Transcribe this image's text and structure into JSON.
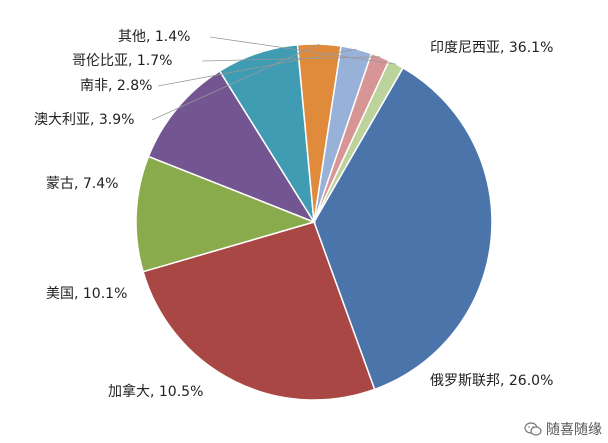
{
  "chart_data": {
    "type": "pie",
    "title": "",
    "slices": [
      {
        "label": "印度尼西亚, 36.1%",
        "value": 36.1,
        "color": "#4a74aa"
      },
      {
        "label": "俄罗斯联邦, 26.0%",
        "value": 26.0,
        "color": "#a94744"
      },
      {
        "label": "加拿大, 10.5%",
        "value": 10.5,
        "color": "#8aab4c"
      },
      {
        "label": "美国, 10.1%",
        "value": 10.1,
        "color": "#735592"
      },
      {
        "label": "蒙古, 7.4%",
        "value": 7.4,
        "color": "#3f9cb3"
      },
      {
        "label": "澳大利亚, 3.9%",
        "value": 3.9,
        "color": "#e08a3c"
      },
      {
        "label": "南非, 2.8%",
        "value": 2.8,
        "color": "#97b1d8"
      },
      {
        "label": "哥伦比亚, 1.7%",
        "value": 1.7,
        "color": "#d89595"
      },
      {
        "label": "其他, 1.4%",
        "value": 1.4,
        "color": "#bcd39b"
      }
    ],
    "start_angle_deg": -60,
    "direction": "clockwise",
    "legend": "none"
  },
  "watermark": {
    "icon": "wechat-icon",
    "text": "随喜随缘"
  }
}
